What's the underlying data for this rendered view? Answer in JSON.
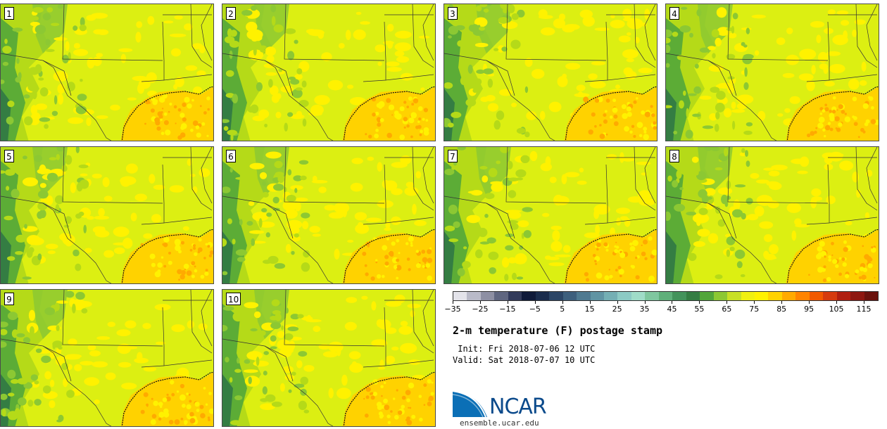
{
  "panels": [
    {
      "label": "1"
    },
    {
      "label": "2"
    },
    {
      "label": "3"
    },
    {
      "label": "4"
    },
    {
      "label": "5"
    },
    {
      "label": "6"
    },
    {
      "label": "7"
    },
    {
      "label": "8"
    },
    {
      "label": "9"
    },
    {
      "label": "10"
    }
  ],
  "colorbar": {
    "colors": [
      "#e3e3ea",
      "#b9bac8",
      "#8d8fa3",
      "#5f6680",
      "#323b5b",
      "#0f1a3a",
      "#1a2c4d",
      "#2b4566",
      "#3d5f7d",
      "#4f7a91",
      "#6094a3",
      "#74afb4",
      "#8ccac4",
      "#9fdcc8",
      "#7fc79f",
      "#5fb07a",
      "#43935b",
      "#347d43",
      "#52a63a",
      "#8cc833",
      "#c8e025",
      "#f0f010",
      "#fff200",
      "#ffd200",
      "#ffaa00",
      "#ff8400",
      "#f25a00",
      "#d63b0e",
      "#b01f10",
      "#8e1710",
      "#6a120d"
    ],
    "ticks": [
      "−35",
      "−25",
      "−15",
      "−5",
      "5",
      "15",
      "25",
      "35",
      "45",
      "55",
      "65",
      "75",
      "85",
      "95",
      "105",
      "115"
    ]
  },
  "title": "2-m temperature (F) postage stamp",
  "init": " Init: Fri 2018-07-06 12 UTC",
  "valid": "Valid: Sat 2018-07-07 10 UTC",
  "logo": {
    "text": "NCAR",
    "site": "ensemble.ucar.edu"
  },
  "map_colors": {
    "land_base": "#dcef12",
    "hot": "#fff200",
    "mild_green": "#b5da18",
    "green": "#8cc833",
    "dark_green": "#52a63a",
    "gulf": "#ffd200",
    "gulf_spots": "#ffaa00"
  }
}
